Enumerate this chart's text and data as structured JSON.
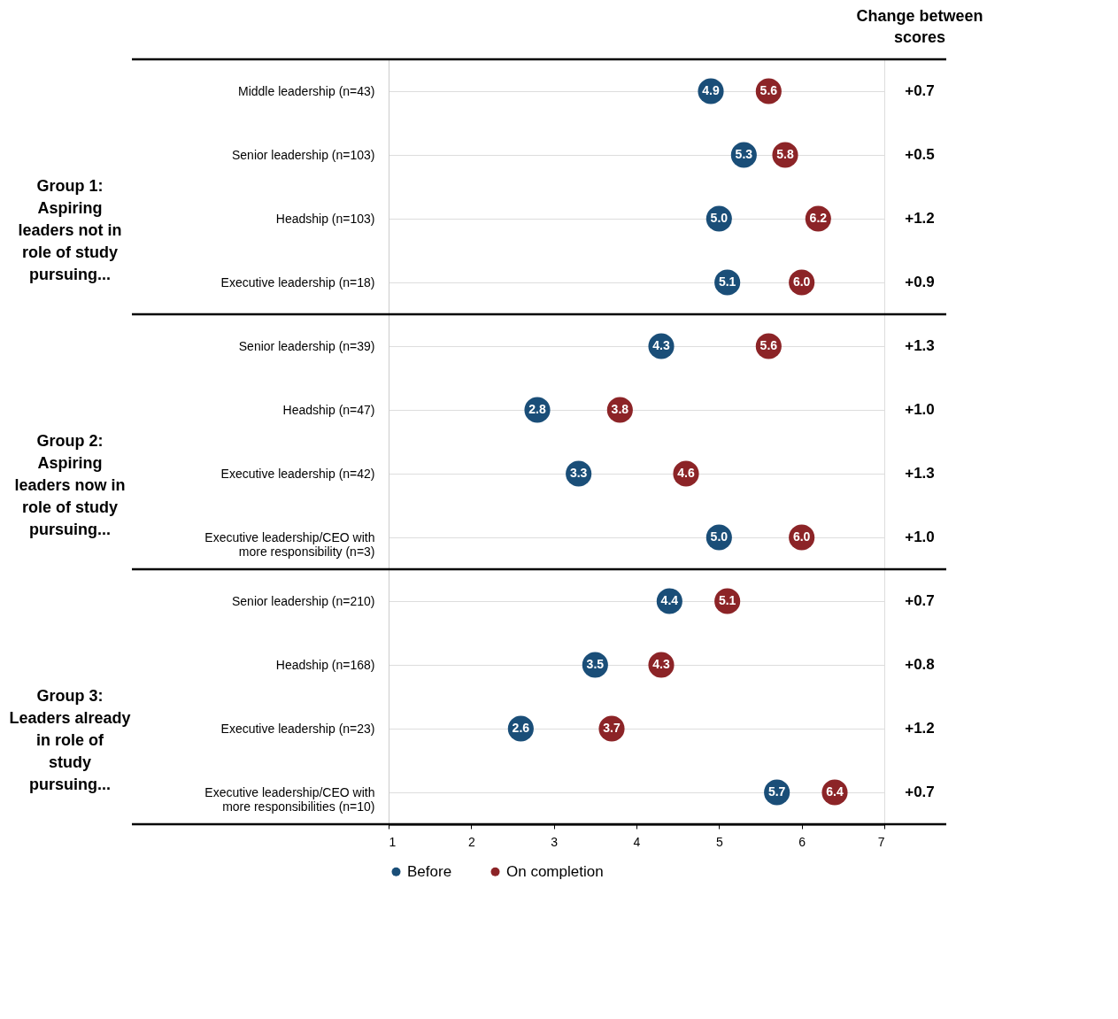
{
  "chart_data": {
    "type": "scatter",
    "orientation": "horizontal",
    "categories": [
      "Middle leadership (n=43)",
      "Senior leadership (n=103)",
      "Headship (n=103)",
      "Executive leadership (n=18)",
      "Senior leadership (n=39)",
      "Headship (n=47)",
      "Executive leadership (n=42)",
      "Executive leadership/CEO with more responsibility (n=3)",
      "Senior leadership (n=210)",
      "Headship (n=168)",
      "Executive leadership (n=23)",
      "Executive leadership/CEO with more responsibilities (n=10)"
    ],
    "series": [
      {
        "name": "Before",
        "color": "#1a4e78",
        "values": [
          4.9,
          5.3,
          5.0,
          5.1,
          4.3,
          2.8,
          3.3,
          5.0,
          4.4,
          3.5,
          2.6,
          5.7
        ],
        "value_labels": [
          "4.9",
          "5.3",
          "5.0",
          "5.1",
          "4.3",
          "2.8",
          "3.3",
          "5.0",
          "4.4",
          "3.5",
          "2.6",
          "5.7"
        ]
      },
      {
        "name": "On completion",
        "color": "#8c2427",
        "values": [
          5.6,
          5.8,
          6.2,
          6.0,
          5.6,
          3.8,
          4.6,
          6.0,
          5.1,
          4.3,
          3.7,
          6.4
        ],
        "value_labels": [
          "5.6",
          "5.8",
          "6.2",
          "6.0",
          "5.6",
          "3.8",
          "4.6",
          "6.0",
          "5.1",
          "4.3",
          "3.7",
          "6.4"
        ]
      }
    ],
    "xlim": [
      1,
      7
    ],
    "xticks": [
      1,
      2,
      3,
      4,
      5,
      6,
      7
    ],
    "marker": "circle",
    "legend": "bottom",
    "grid": "y",
    "annotations": [
      "Change between scores",
      "Group 1: Aspiring leaders not in role of study pursuing...",
      "Group 2: Aspiring leaders now in role of study pursuing...",
      "Group 3: Leaders already in role of study pursuing...",
      "+0.7",
      "+0.5",
      "+1.2",
      "+0.9",
      "+1.3",
      "+1.0",
      "+1.3",
      "+1.0",
      "+0.7",
      "+0.8",
      "+1.2",
      "+0.7"
    ]
  }
}
